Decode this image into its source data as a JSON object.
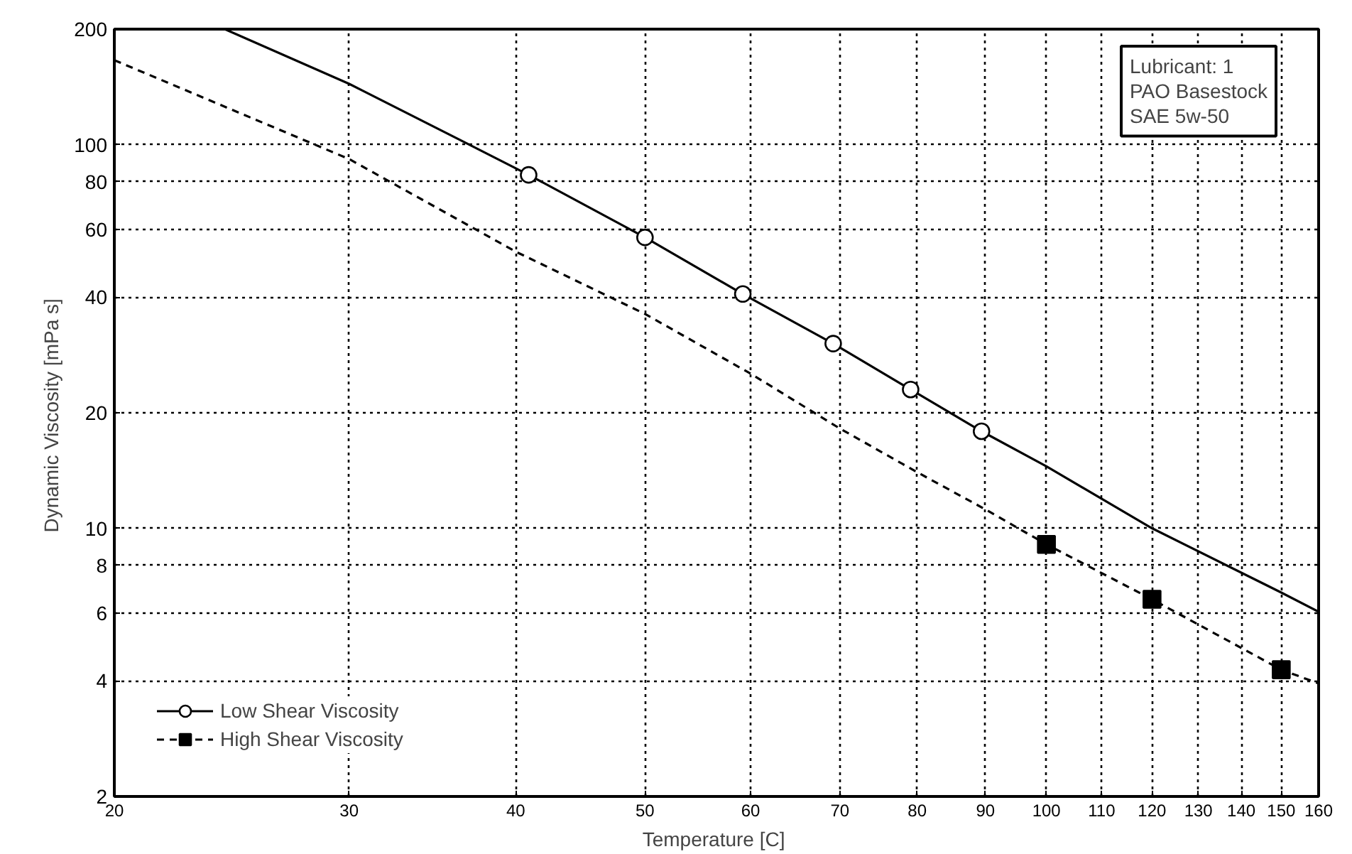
{
  "chart_data": {
    "type": "line",
    "xlabel": "Temperature  [C]",
    "ylabel": "Dynamic Viscosity  [mPa s]",
    "log": "xy",
    "grid": true,
    "legend": "bottom left",
    "xlim": [
      20,
      160
    ],
    "ylim": [
      2,
      200
    ],
    "xticks": [
      20,
      30,
      40,
      50,
      60,
      70,
      80,
      90,
      100,
      110,
      120,
      130,
      140,
      150,
      160
    ],
    "yticks": [
      2,
      4,
      6,
      8,
      10,
      20,
      40,
      60,
      80,
      100,
      200
    ],
    "annotations": [
      "Lubricant:  1",
      "PAO Basestock",
      "SAE 5w-50"
    ],
    "series": [
      {
        "name": "Low Shear Viscosity",
        "color": "#000000",
        "line_style": "solid",
        "x": [
          24.2,
          30,
          36.3,
          40.9,
          50,
          59.2,
          69.2,
          79.1,
          89.4,
          100,
          120,
          150,
          160
        ],
        "values": [
          200,
          144,
          103,
          83.4,
          57.3,
          40.8,
          30.3,
          23.0,
          17.9,
          14.5,
          10.0,
          6.8,
          6.06
        ]
      },
      {
        "type": "scatter",
        "color": "#000000",
        "marker": "circle",
        "x": [
          40.9,
          50,
          59.2,
          69.2,
          79.1,
          89.4
        ],
        "values": [
          83.4,
          57.3,
          40.8,
          30.3,
          23.0,
          17.9
        ]
      },
      {
        "name": "High Shear Viscosity",
        "color": "#000000",
        "line_style": "dashed",
        "x": [
          20,
          30,
          40,
          50,
          60,
          70,
          80,
          90,
          100,
          120,
          150,
          160
        ],
        "values": [
          166,
          91.7,
          52.6,
          36.2,
          25.3,
          18.2,
          14.0,
          11.2,
          9.08,
          6.53,
          4.28,
          3.94
        ]
      },
      {
        "type": "scatter",
        "color": "#000000",
        "marker": "square",
        "x": [
          100,
          120,
          150
        ],
        "values": [
          9.08,
          6.53,
          4.28
        ]
      }
    ]
  }
}
